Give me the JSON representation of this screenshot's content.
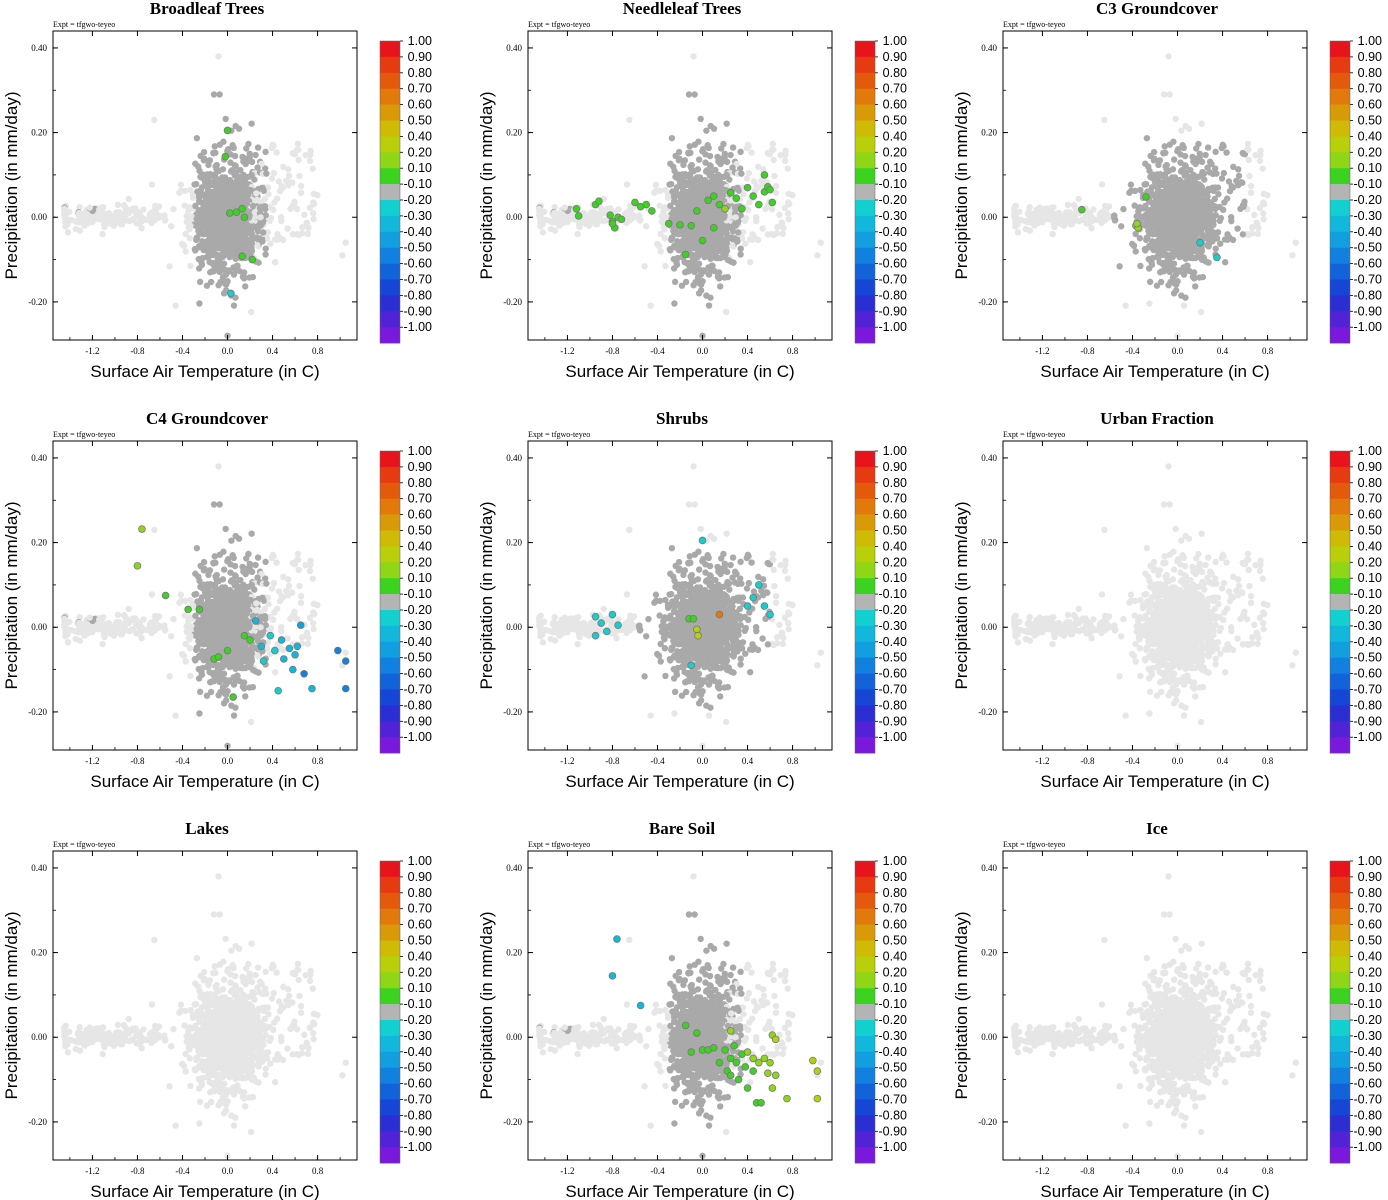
{
  "figure": {
    "colorbar_labels": [
      "1.00",
      "0.90",
      "0.80",
      "0.70",
      "0.60",
      "0.50",
      "0.40",
      "0.20",
      "0.10",
      "-0.10",
      "-0.20",
      "-0.30",
      "-0.40",
      "-0.50",
      "-0.60",
      "-0.70",
      "-0.80",
      "-0.90",
      "-1.00"
    ],
    "colorbar_colors": [
      "#e8141c",
      "#e63a10",
      "#e45a0c",
      "#e17a0a",
      "#d99a08",
      "#cfbb05",
      "#b8cf0a",
      "#8fd616",
      "#3cd320",
      "#b4b4b4",
      "#12cfd0",
      "#12b8dc",
      "#129fe0",
      "#1280de",
      "#1262da",
      "#1546d6",
      "#2a2ed3",
      "#5222d6",
      "#7a18dc"
    ],
    "point_colors": {
      "faint": "#e6e6e6",
      "gray": "#a9a9a9"
    }
  },
  "chart_data": [
    {
      "type": "scatter",
      "title": "Broadleaf Trees",
      "expt": "Expt = tfgwo-teyeo",
      "xlabel": "Surface Air Temperature (in C)",
      "ylabel": "Precipitation (in mm/day)",
      "xlim": [
        -1.55,
        1.15
      ],
      "ylim": [
        -0.29,
        0.44
      ],
      "xticks": [
        "-1.2",
        "-0.8",
        "-0.4",
        "0.0",
        "0.4",
        "0.8"
      ],
      "yticks": [
        "0.40",
        "0.20",
        "0.00",
        "-0.20"
      ],
      "gray_cloud": "full",
      "highlights": [
        {
          "x": 0.0,
          "y": 0.205,
          "c": "0.10"
        },
        {
          "x": -0.02,
          "y": 0.143,
          "c": "0.10"
        },
        {
          "x": 0.02,
          "y": 0.01,
          "c": "0.10"
        },
        {
          "x": 0.08,
          "y": 0.012,
          "c": "0.10"
        },
        {
          "x": 0.13,
          "y": 0.02,
          "c": "0.10"
        },
        {
          "x": 0.15,
          "y": 0.0,
          "c": "0.10"
        },
        {
          "x": 0.13,
          "y": -0.092,
          "c": "0.10"
        },
        {
          "x": 0.22,
          "y": -0.1,
          "c": "0.10"
        },
        {
          "x": 0.03,
          "y": -0.18,
          "c": "-0.20"
        }
      ]
    },
    {
      "type": "scatter",
      "title": "Needleleaf Trees",
      "expt": "Expt = tfgwo-teyeo",
      "xlabel": "Surface Air Temperature (in C)",
      "ylabel": "Precipitation (in mm/day)",
      "xlim": [
        -1.55,
        1.15
      ],
      "ylim": [
        -0.29,
        0.44
      ],
      "xticks": [
        "-1.2",
        "-0.8",
        "-0.4",
        "0.0",
        "0.4",
        "0.8"
      ],
      "yticks": [
        "0.40",
        "0.20",
        "0.00",
        "-0.20"
      ],
      "gray_cloud": "full",
      "highlights": [
        {
          "x": -1.12,
          "y": 0.02,
          "c": "0.10"
        },
        {
          "x": -1.1,
          "y": 0.003,
          "c": "0.10"
        },
        {
          "x": -0.95,
          "y": 0.03,
          "c": "0.10"
        },
        {
          "x": -0.92,
          "y": 0.038,
          "c": "0.10"
        },
        {
          "x": -0.82,
          "y": 0.005,
          "c": "0.10"
        },
        {
          "x": -0.8,
          "y": -0.01,
          "c": "0.10"
        },
        {
          "x": -0.78,
          "y": -0.025,
          "c": "0.10"
        },
        {
          "x": -0.75,
          "y": 0.0,
          "c": "0.10"
        },
        {
          "x": -0.72,
          "y": -0.005,
          "c": "0.10"
        },
        {
          "x": -0.8,
          "y": -0.015,
          "c": "0.10"
        },
        {
          "x": -0.6,
          "y": 0.035,
          "c": "0.10"
        },
        {
          "x": -0.55,
          "y": 0.025,
          "c": "0.10"
        },
        {
          "x": -0.5,
          "y": 0.03,
          "c": "0.10"
        },
        {
          "x": -0.45,
          "y": 0.015,
          "c": "0.10"
        },
        {
          "x": -0.3,
          "y": -0.015,
          "c": "0.10"
        },
        {
          "x": -0.2,
          "y": -0.018,
          "c": "0.10"
        },
        {
          "x": -0.15,
          "y": -0.088,
          "c": "0.10"
        },
        {
          "x": -0.1,
          "y": -0.02,
          "c": "0.10"
        },
        {
          "x": -0.05,
          "y": 0.015,
          "c": "0.10"
        },
        {
          "x": 0.0,
          "y": -0.055,
          "c": "0.10"
        },
        {
          "x": 0.05,
          "y": 0.04,
          "c": "0.10"
        },
        {
          "x": 0.1,
          "y": 0.05,
          "c": "0.10"
        },
        {
          "x": 0.1,
          "y": -0.025,
          "c": "0.10"
        },
        {
          "x": 0.15,
          "y": 0.03,
          "c": "0.10"
        },
        {
          "x": 0.2,
          "y": 0.02,
          "c": "0.20"
        },
        {
          "x": 0.25,
          "y": 0.058,
          "c": "0.10"
        },
        {
          "x": 0.3,
          "y": 0.045,
          "c": "0.10"
        },
        {
          "x": 0.35,
          "y": 0.02,
          "c": "0.10"
        },
        {
          "x": 0.4,
          "y": 0.07,
          "c": "0.10"
        },
        {
          "x": 0.45,
          "y": 0.05,
          "c": "0.10"
        },
        {
          "x": 0.5,
          "y": 0.03,
          "c": "0.10"
        },
        {
          "x": 0.55,
          "y": 0.06,
          "c": "0.10"
        },
        {
          "x": 0.58,
          "y": 0.072,
          "c": "0.10"
        },
        {
          "x": 0.6,
          "y": 0.065,
          "c": "0.10"
        },
        {
          "x": 0.55,
          "y": 0.1,
          "c": "0.10"
        },
        {
          "x": 0.62,
          "y": 0.035,
          "c": "0.10"
        }
      ]
    },
    {
      "type": "scatter",
      "title": "C3 Groundcover",
      "expt": "Expt = tfgwo-teyeo",
      "xlabel": "Surface Air Temperature (in C)",
      "ylabel": "Precipitation (in mm/day)",
      "xlim": [
        -1.55,
        1.15
      ],
      "ylim": [
        -0.29,
        0.44
      ],
      "xticks": [
        "-1.2",
        "-0.8",
        "-0.4",
        "0.0",
        "0.4",
        "0.8"
      ],
      "yticks": [
        "0.40",
        "0.20",
        "0.00",
        "-0.20"
      ],
      "gray_cloud": "dense",
      "highlights": [
        {
          "x": -0.85,
          "y": 0.018,
          "c": "0.10"
        },
        {
          "x": -0.37,
          "y": -0.02,
          "c": "0.20"
        },
        {
          "x": -0.35,
          "y": -0.025,
          "c": "0.20"
        },
        {
          "x": -0.36,
          "y": -0.015,
          "c": "0.20"
        },
        {
          "x": -0.28,
          "y": 0.048,
          "c": "0.10"
        },
        {
          "x": 0.35,
          "y": -0.095,
          "c": "-0.20"
        },
        {
          "x": 0.2,
          "y": -0.06,
          "c": "-0.20"
        }
      ]
    },
    {
      "type": "scatter",
      "title": "C4 Groundcover",
      "expt": "Expt = tfgwo-teyeo",
      "xlabel": "Surface Air Temperature (in C)",
      "ylabel": "Precipitation (in mm/day)",
      "xlim": [
        -1.55,
        1.15
      ],
      "ylim": [
        -0.29,
        0.44
      ],
      "xticks": [
        "-1.2",
        "-0.8",
        "-0.4",
        "0.0",
        "0.4",
        "0.8"
      ],
      "yticks": [
        "0.40",
        "0.20",
        "0.00",
        "-0.20"
      ],
      "gray_cloud": "full",
      "highlights": [
        {
          "x": -0.76,
          "y": 0.232,
          "c": "0.20"
        },
        {
          "x": -0.8,
          "y": 0.145,
          "c": "0.20"
        },
        {
          "x": -0.55,
          "y": 0.075,
          "c": "0.10"
        },
        {
          "x": -0.35,
          "y": 0.042,
          "c": "0.10"
        },
        {
          "x": -0.25,
          "y": 0.042,
          "c": "0.10"
        },
        {
          "x": -0.12,
          "y": -0.075,
          "c": "0.10"
        },
        {
          "x": -0.08,
          "y": -0.07,
          "c": "0.10"
        },
        {
          "x": 0.0,
          "y": -0.055,
          "c": "0.10"
        },
        {
          "x": 0.05,
          "y": -0.165,
          "c": "0.10"
        },
        {
          "x": 0.15,
          "y": -0.02,
          "c": "0.10"
        },
        {
          "x": 0.2,
          "y": -0.03,
          "c": "0.10"
        },
        {
          "x": 0.25,
          "y": 0.015,
          "c": "-0.30"
        },
        {
          "x": 0.3,
          "y": -0.045,
          "c": "-0.30"
        },
        {
          "x": 0.32,
          "y": -0.08,
          "c": "-0.20"
        },
        {
          "x": 0.38,
          "y": -0.02,
          "c": "-0.20"
        },
        {
          "x": 0.42,
          "y": -0.055,
          "c": "-0.20"
        },
        {
          "x": 0.45,
          "y": -0.15,
          "c": "-0.20"
        },
        {
          "x": 0.48,
          "y": -0.03,
          "c": "-0.30"
        },
        {
          "x": 0.5,
          "y": -0.075,
          "c": "-0.30"
        },
        {
          "x": 0.55,
          "y": -0.05,
          "c": "-0.30"
        },
        {
          "x": 0.58,
          "y": -0.1,
          "c": "-0.30"
        },
        {
          "x": 0.6,
          "y": -0.065,
          "c": "-0.30"
        },
        {
          "x": 0.62,
          "y": -0.045,
          "c": "-0.30"
        },
        {
          "x": 0.65,
          "y": 0.005,
          "c": "-0.40"
        },
        {
          "x": 0.68,
          "y": -0.11,
          "c": "-0.50"
        },
        {
          "x": 0.75,
          "y": -0.145,
          "c": "-0.30"
        },
        {
          "x": 0.98,
          "y": -0.055,
          "c": "-0.50"
        },
        {
          "x": 1.05,
          "y": -0.08,
          "c": "-0.50"
        },
        {
          "x": 1.05,
          "y": -0.145,
          "c": "-0.50"
        }
      ]
    },
    {
      "type": "scatter",
      "title": "Shrubs",
      "expt": "Expt = tfgwo-teyeo",
      "xlabel": "Surface Air Temperature (in C)",
      "ylabel": "Precipitation (in mm/day)",
      "xlim": [
        -1.55,
        1.15
      ],
      "ylim": [
        -0.29,
        0.44
      ],
      "xticks": [
        "-1.2",
        "-0.8",
        "-0.4",
        "0.0",
        "0.4",
        "0.8"
      ],
      "yticks": [
        "0.40",
        "0.20",
        "0.00",
        "-0.20"
      ],
      "gray_cloud": "dense",
      "highlights": [
        {
          "x": -0.95,
          "y": 0.025,
          "c": "-0.20"
        },
        {
          "x": -0.9,
          "y": 0.01,
          "c": "-0.20"
        },
        {
          "x": -0.95,
          "y": -0.02,
          "c": "-0.20"
        },
        {
          "x": -0.8,
          "y": 0.03,
          "c": "-0.20"
        },
        {
          "x": -0.85,
          "y": -0.01,
          "c": "-0.20"
        },
        {
          "x": -0.75,
          "y": 0.005,
          "c": "-0.20"
        },
        {
          "x": 0.0,
          "y": 0.205,
          "c": "-0.20"
        },
        {
          "x": -0.12,
          "y": 0.02,
          "c": "0.10"
        },
        {
          "x": -0.08,
          "y": 0.02,
          "c": "0.10"
        },
        {
          "x": -0.05,
          "y": -0.005,
          "c": "0.40"
        },
        {
          "x": -0.04,
          "y": -0.02,
          "c": "0.40"
        },
        {
          "x": 0.15,
          "y": 0.03,
          "c": "0.70"
        },
        {
          "x": -0.1,
          "y": -0.09,
          "c": "-0.20"
        },
        {
          "x": 0.5,
          "y": 0.1,
          "c": "-0.20"
        },
        {
          "x": 0.45,
          "y": 0.07,
          "c": "-0.20"
        },
        {
          "x": 0.55,
          "y": 0.05,
          "c": "-0.20"
        },
        {
          "x": 0.6,
          "y": 0.03,
          "c": "-0.20"
        },
        {
          "x": 0.4,
          "y": 0.05,
          "c": "-0.20"
        }
      ]
    },
    {
      "type": "scatter",
      "title": "Urban Fraction",
      "expt": "Expt = tfgwo-teyeo",
      "xlabel": "Surface Air Temperature (in C)",
      "ylabel": "Precipitation (in mm/day)",
      "xlim": [
        -1.55,
        1.15
      ],
      "ylim": [
        -0.29,
        0.44
      ],
      "xticks": [
        "-1.2",
        "-0.8",
        "-0.4",
        "0.0",
        "0.4",
        "0.8"
      ],
      "yticks": [
        "0.40",
        "0.20",
        "0.00",
        "-0.20"
      ],
      "gray_cloud": "none",
      "highlights": []
    },
    {
      "type": "scatter",
      "title": "Lakes",
      "expt": "Expt = tfgwo-teyeo",
      "xlabel": "Surface Air Temperature (in C)",
      "ylabel": "Precipitation (in mm/day)",
      "xlim": [
        -1.55,
        1.15
      ],
      "ylim": [
        -0.29,
        0.44
      ],
      "xticks": [
        "-1.2",
        "-0.8",
        "-0.4",
        "0.0",
        "0.4",
        "0.8"
      ],
      "yticks": [
        "0.40",
        "0.20",
        "0.00",
        "-0.20"
      ],
      "gray_cloud": "none",
      "highlights": []
    },
    {
      "type": "scatter",
      "title": "Bare Soil",
      "expt": "Expt = tfgwo-teyeo",
      "xlabel": "Surface Air Temperature (in C)",
      "ylabel": "Precipitation (in mm/day)",
      "xlim": [
        -1.55,
        1.15
      ],
      "ylim": [
        -0.29,
        0.44
      ],
      "xticks": [
        "-1.2",
        "-0.8",
        "-0.4",
        "0.0",
        "0.4",
        "0.8"
      ],
      "yticks": [
        "0.40",
        "0.20",
        "0.00",
        "-0.20"
      ],
      "gray_cloud": "full",
      "highlights": [
        {
          "x": -0.76,
          "y": 0.232,
          "c": "-0.30"
        },
        {
          "x": -0.8,
          "y": 0.145,
          "c": "-0.30"
        },
        {
          "x": -0.55,
          "y": 0.075,
          "c": "-0.30"
        },
        {
          "x": -0.15,
          "y": 0.028,
          "c": "0.10"
        },
        {
          "x": -0.1,
          "y": -0.035,
          "c": "0.10"
        },
        {
          "x": -0.05,
          "y": 0.01,
          "c": "0.10"
        },
        {
          "x": 0.0,
          "y": -0.03,
          "c": "0.10"
        },
        {
          "x": 0.05,
          "y": -0.03,
          "c": "0.10"
        },
        {
          "x": 0.1,
          "y": -0.025,
          "c": "0.10"
        },
        {
          "x": 0.15,
          "y": -0.06,
          "c": "0.10"
        },
        {
          "x": 0.2,
          "y": -0.03,
          "c": "0.10"
        },
        {
          "x": 0.22,
          "y": -0.08,
          "c": "0.10"
        },
        {
          "x": 0.25,
          "y": -0.05,
          "c": "0.10"
        },
        {
          "x": 0.25,
          "y": -0.09,
          "c": "0.10"
        },
        {
          "x": 0.28,
          "y": -0.02,
          "c": "0.10"
        },
        {
          "x": 0.3,
          "y": -0.06,
          "c": "0.10"
        },
        {
          "x": 0.32,
          "y": -0.1,
          "c": "0.10"
        },
        {
          "x": 0.35,
          "y": -0.04,
          "c": "0.10"
        },
        {
          "x": 0.38,
          "y": -0.07,
          "c": "0.10"
        },
        {
          "x": 0.4,
          "y": -0.12,
          "c": "0.10"
        },
        {
          "x": 0.45,
          "y": -0.08,
          "c": "0.10"
        },
        {
          "x": 0.48,
          "y": -0.155,
          "c": "0.10"
        },
        {
          "x": 0.52,
          "y": -0.155,
          "c": "0.10"
        },
        {
          "x": 0.25,
          "y": 0.015,
          "c": "0.20"
        },
        {
          "x": 0.4,
          "y": -0.035,
          "c": "0.20"
        },
        {
          "x": 0.45,
          "y": -0.05,
          "c": "0.20"
        },
        {
          "x": 0.5,
          "y": -0.06,
          "c": "0.20"
        },
        {
          "x": 0.55,
          "y": -0.05,
          "c": "0.20"
        },
        {
          "x": 0.58,
          "y": -0.085,
          "c": "0.20"
        },
        {
          "x": 0.6,
          "y": -0.06,
          "c": "0.20"
        },
        {
          "x": 0.62,
          "y": -0.12,
          "c": "0.20"
        },
        {
          "x": 0.65,
          "y": -0.09,
          "c": "0.20"
        },
        {
          "x": 0.62,
          "y": 0.005,
          "c": "0.20"
        },
        {
          "x": 0.65,
          "y": -0.005,
          "c": "0.40"
        },
        {
          "x": 0.75,
          "y": -0.145,
          "c": "0.20"
        },
        {
          "x": 0.98,
          "y": -0.055,
          "c": "0.40"
        },
        {
          "x": 1.02,
          "y": -0.08,
          "c": "0.40"
        },
        {
          "x": 1.02,
          "y": -0.145,
          "c": "0.40"
        }
      ]
    },
    {
      "type": "scatter",
      "title": "Ice",
      "expt": "Expt = tfgwo-teyeo",
      "xlabel": "Surface Air Temperature (in C)",
      "ylabel": "Precipitation (in mm/day)",
      "xlim": [
        -1.55,
        1.15
      ],
      "ylim": [
        -0.29,
        0.44
      ],
      "xticks": [
        "-1.2",
        "-0.8",
        "-0.4",
        "0.0",
        "0.4",
        "0.8"
      ],
      "yticks": [
        "0.40",
        "0.20",
        "0.00",
        "-0.20"
      ],
      "gray_cloud": "none",
      "highlights": []
    }
  ]
}
